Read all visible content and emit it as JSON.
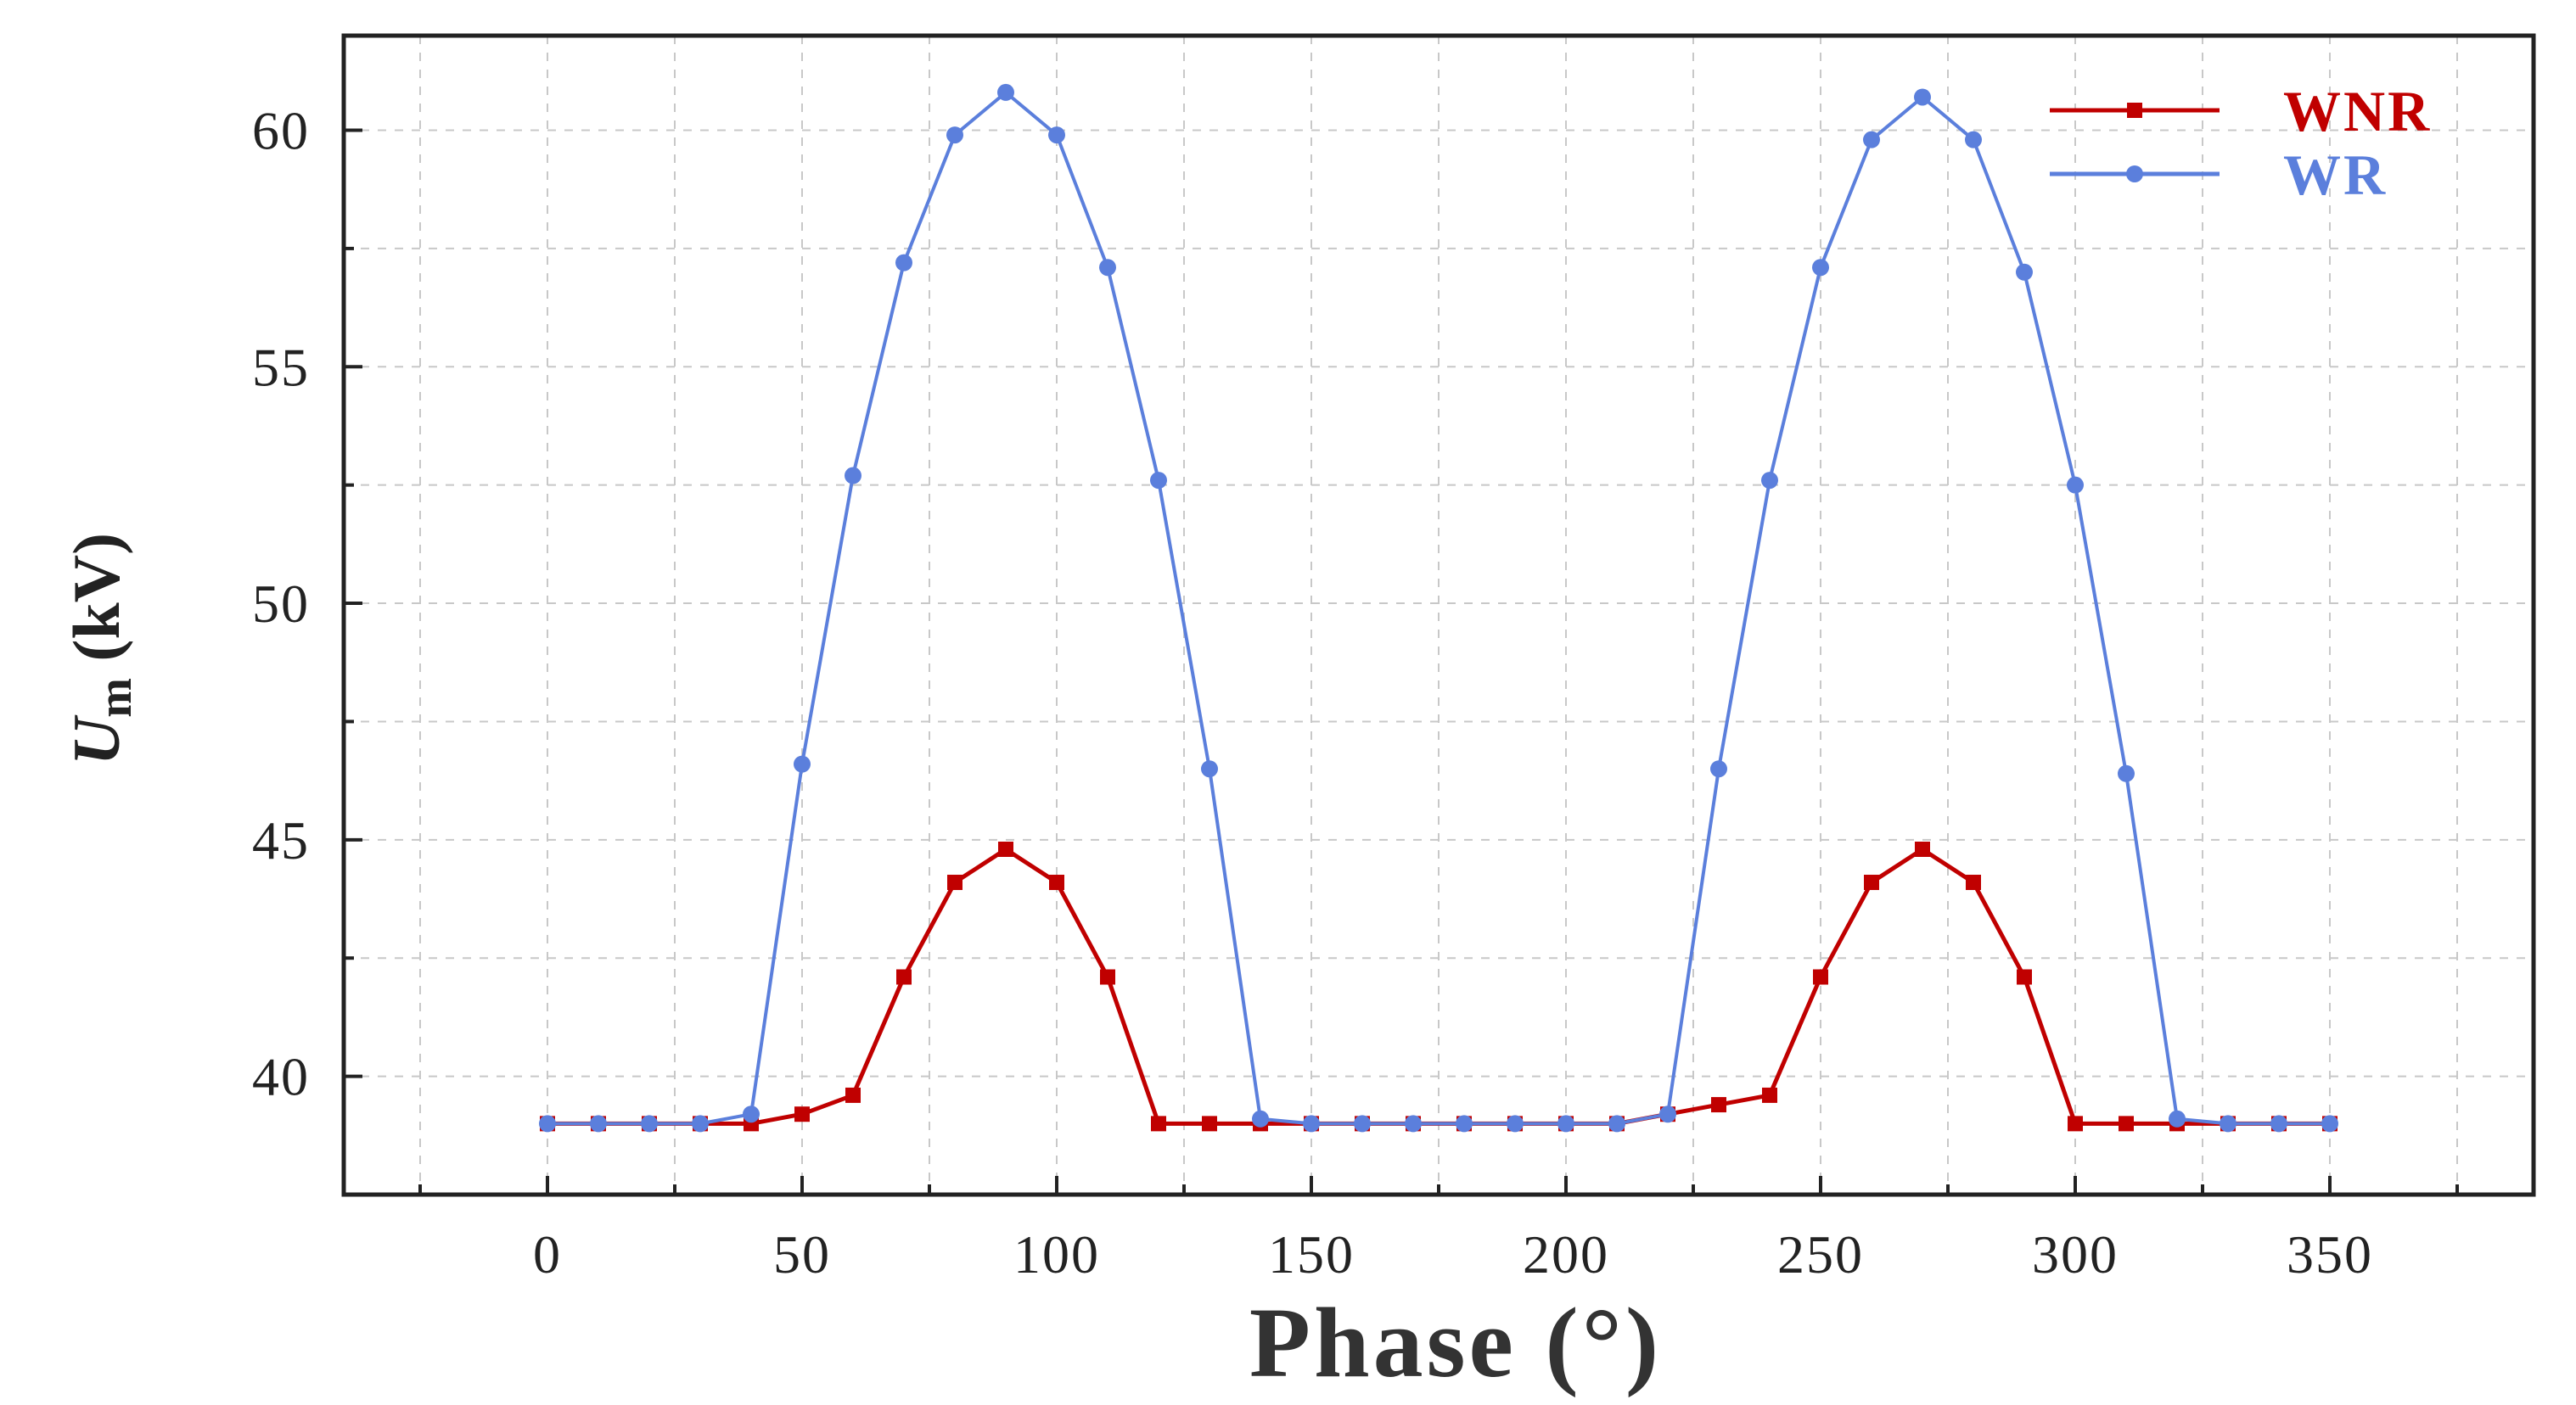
{
  "colors": {
    "WNR": "#c00000",
    "WR": "#5b7fdc",
    "axis": "#222222",
    "grid": "#c8c8c8"
  },
  "chart_data": {
    "type": "line",
    "title": "",
    "xlabel": "Phase (°)",
    "ylabel": {
      "base": "U",
      "subscript": "m",
      "unit": " (kV)"
    },
    "xlim": [
      -40,
      390
    ],
    "ylim": [
      37.5,
      62
    ],
    "x_ticks": [
      0,
      50,
      100,
      150,
      200,
      250,
      300,
      350
    ],
    "y_ticks": [
      40,
      45,
      50,
      55,
      60
    ],
    "grid": true,
    "legend_position": "top-right",
    "x": [
      0,
      10,
      20,
      30,
      40,
      50,
      60,
      70,
      80,
      90,
      100,
      110,
      120,
      130,
      140,
      150,
      160,
      170,
      180,
      190,
      200,
      210,
      220,
      230,
      240,
      250,
      260,
      270,
      280,
      290,
      300,
      310,
      320,
      330,
      340,
      350
    ],
    "series": [
      {
        "name": "WNR",
        "marker": "square",
        "values": [
          39.0,
          39.0,
          39.0,
          39.0,
          39.0,
          39.2,
          39.6,
          42.1,
          44.1,
          44.8,
          44.1,
          42.1,
          39.0,
          39.0,
          39.0,
          39.0,
          39.0,
          39.0,
          39.0,
          39.0,
          39.0,
          39.0,
          39.2,
          39.4,
          39.6,
          42.1,
          44.1,
          44.8,
          44.1,
          42.1,
          39.0,
          39.0,
          39.0,
          39.0,
          39.0,
          39.0
        ]
      },
      {
        "name": "WR",
        "marker": "circle",
        "values": [
          39.0,
          39.0,
          39.0,
          39.0,
          39.2,
          46.6,
          52.7,
          57.2,
          59.9,
          60.8,
          59.9,
          57.1,
          52.6,
          46.5,
          39.1,
          39.0,
          39.0,
          39.0,
          39.0,
          39.0,
          39.0,
          39.0,
          39.2,
          46.5,
          52.6,
          57.1,
          59.8,
          60.7,
          59.8,
          57.0,
          52.5,
          46.4,
          39.1,
          39.0,
          39.0,
          39.0
        ]
      }
    ]
  }
}
